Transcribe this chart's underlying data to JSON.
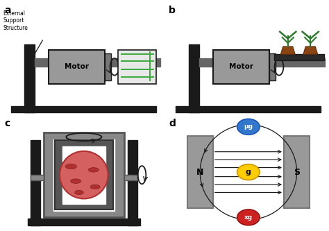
{
  "bg_color": "#ffffff",
  "label_a": "a",
  "label_b": "b",
  "label_c": "c",
  "label_d": "d",
  "motor_color": "#999999",
  "dark_color": "#1a1a1a",
  "shaft_color": "#666666",
  "green_color": "#2d7a2d",
  "green_bright": "#3aaa3a",
  "brown_color": "#8B4513",
  "red_oval_color": "#d46060",
  "red_oval_edge": "#b03030",
  "spot_color": "#b03030",
  "blue_color": "#3377cc",
  "yellow_color": "#ffcc00",
  "red_dot_color": "#cc2222",
  "frame_outer_color": "#888888",
  "frame_inner_color": "#555555",
  "plate_color": "#999999",
  "sample_box_color": "#e8e8e8"
}
